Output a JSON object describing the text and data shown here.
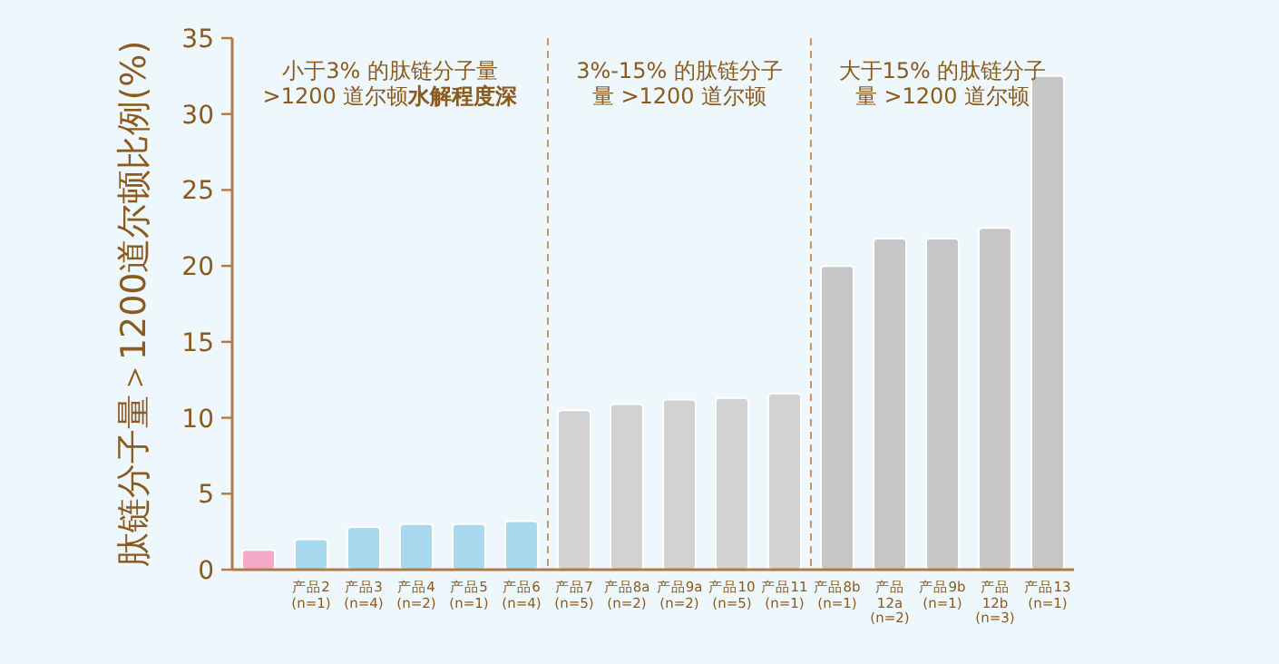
{
  "chart_data": {
    "type": "bar",
    "ylabel": "肽链分子量＞1200道尔顿比例(%)",
    "categories": [
      null,
      "产品2 (n=1)",
      "产品3 (n=4)",
      "产品4 (n=2)",
      "产品5 (n=1)",
      "产品6 (n=4)",
      "产品7 (n=5)",
      "产品8a (n=2)",
      "产品9a (n=2)",
      "产品10 (n=5)",
      "产品11 (n=1)",
      "产品8b (n=1)",
      "产品12a (n=2)",
      "产品9b (n=1)",
      "产品12b (n=3)",
      "产品13 (n=1)"
    ],
    "values": [
      1.3,
      2.0,
      2.8,
      3.0,
      3.0,
      3.2,
      10.5,
      10.9,
      11.2,
      11.3,
      11.6,
      20.0,
      21.8,
      21.8,
      22.5,
      32.5
    ],
    "colors": [
      "#f4a9c9",
      "#a9d9ef",
      "#a9d9ef",
      "#a9d9ef",
      "#a9d9ef",
      "#a9d9ef",
      "#d2d2d2",
      "#d2d2d2",
      "#d2d2d2",
      "#d2d2d2",
      "#d2d2d2",
      "#c6c6c6",
      "#c6c6c6",
      "#c6c6c6",
      "#c6c6c6",
      "#c6c6c6"
    ],
    "ylim": [
      0,
      35
    ],
    "yticks": [
      0,
      5,
      10,
      15,
      20,
      25,
      30,
      35
    ],
    "annotations": [
      "小于3% 的肽链分子量>1200 道尔顿**水解程度深**",
      "3%-15% 的肽链分子量 >1200 道尔顿",
      "大于15% 的肽链分子量 >1200 道尔顿"
    ]
  }
}
